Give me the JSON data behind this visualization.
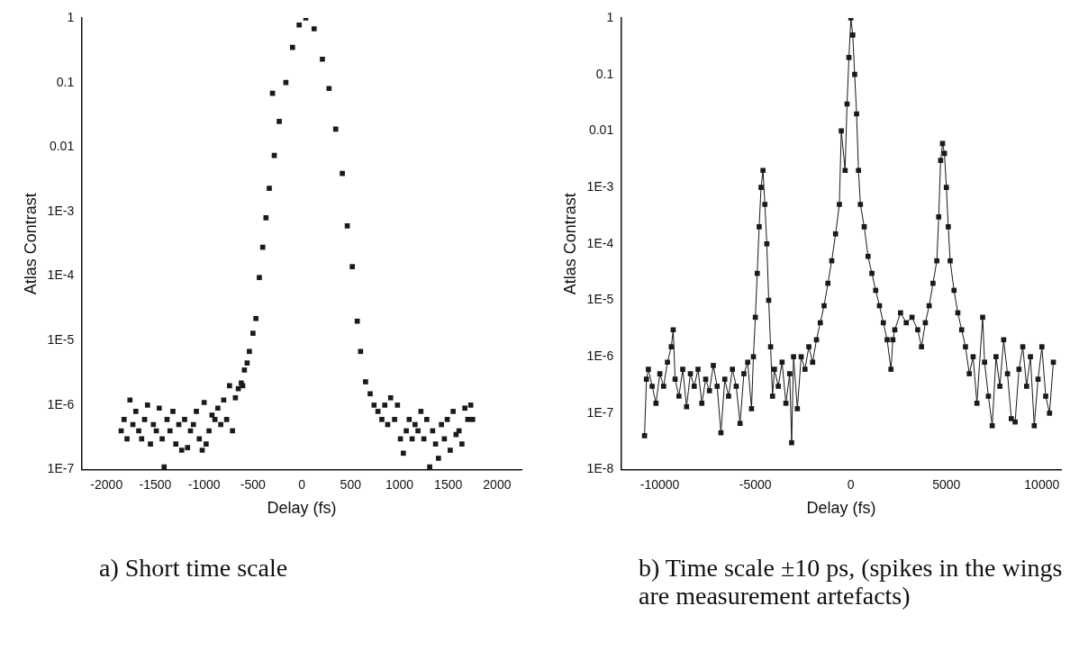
{
  "chart_data": [
    {
      "type": "scatter",
      "xlabel": "Delay (fs)",
      "ylabel": "Atlas Contrast",
      "log": "y",
      "marker": "square",
      "grid": false,
      "legend": false,
      "xlim": [
        -2250,
        2250
      ],
      "xticks": [
        -2000,
        -1500,
        -1000,
        -500,
        0,
        500,
        1000,
        1500,
        2000
      ],
      "ylim": [
        1e-07,
        1
      ],
      "yticks": [
        {
          "value": 1,
          "label": "1"
        },
        {
          "value": 0.1,
          "label": "0.1"
        },
        {
          "value": 0.01,
          "label": "0.01"
        },
        {
          "value": 0.001,
          "label": "1E-3"
        },
        {
          "value": 0.0001,
          "label": "1E-4"
        },
        {
          "value": 1e-05,
          "label": "1E-5"
        },
        {
          "value": 1e-06,
          "label": "1E-6"
        },
        {
          "value": 1e-07,
          "label": "1E-7"
        }
      ],
      "annotations": [
        "a) Short time scale"
      ],
      "series": [
        {
          "color": "#1a1a1a",
          "x": [
            -1850,
            -1820,
            -1790,
            -1760,
            -1730,
            -1700,
            -1670,
            -1640,
            -1610,
            -1580,
            -1550,
            -1520,
            -1490,
            -1460,
            -1430,
            -1410,
            -1380,
            -1350,
            -1320,
            -1290,
            -1260,
            -1230,
            -1200,
            -1170,
            -1140,
            -1110,
            -1080,
            -1050,
            -1020,
            -1000,
            -980,
            -950,
            -920,
            -890,
            -860,
            -830,
            -800,
            -770,
            -740,
            -710,
            -680,
            -650,
            -620,
            -605,
            -588,
            -560,
            -537,
            -500,
            -470,
            -435,
            -400,
            -367,
            -333,
            -300,
            -282,
            -231,
            -163,
            -95,
            -27,
            41,
            126,
            211,
            279,
            347,
            415,
            466,
            517,
            568,
            602,
            653,
            700,
            740,
            780,
            820,
            850,
            880,
            910,
            950,
            980,
            1010,
            1040,
            1070,
            1100,
            1130,
            1160,
            1190,
            1220,
            1250,
            1280,
            1310,
            1340,
            1370,
            1400,
            1430,
            1460,
            1490,
            1520,
            1550,
            1580,
            1610,
            1640,
            1670,
            1700,
            1730,
            1750
          ],
          "values": [
            4e-07,
            6e-07,
            3e-07,
            1.2e-06,
            5e-07,
            8e-07,
            4e-07,
            3e-07,
            6e-07,
            1e-06,
            2.5e-07,
            5e-07,
            4e-07,
            9e-07,
            3e-07,
            1.1e-07,
            6e-07,
            4e-07,
            8e-07,
            2.5e-07,
            5e-07,
            2e-07,
            6e-07,
            2.2e-07,
            4e-07,
            5e-07,
            8e-07,
            3e-07,
            2e-07,
            1.1e-06,
            2.5e-07,
            4e-07,
            7e-07,
            6e-07,
            9e-07,
            5e-07,
            1.2e-06,
            6e-07,
            2e-06,
            4e-07,
            1.3e-06,
            1.8e-06,
            2.2e-06,
            2e-06,
            3.5e-06,
            4.5e-06,
            6.8e-06,
            1.3e-05,
            2.2e-05,
            9.5e-05,
            0.00028,
            0.0008,
            0.0023,
            0.068,
            0.0074,
            0.025,
            0.1,
            0.35,
            0.78,
            1,
            0.68,
            0.23,
            0.081,
            0.019,
            0.0039,
            0.0006,
            0.00014,
            2e-05,
            6.8e-06,
            2.3e-06,
            1.5e-06,
            1e-06,
            8e-07,
            6e-07,
            1e-06,
            5e-07,
            1.3e-06,
            6e-07,
            1e-06,
            3e-07,
            1.8e-07,
            4e-07,
            6e-07,
            3e-07,
            5e-07,
            4e-07,
            8e-07,
            3e-07,
            6e-07,
            1.1e-07,
            4e-07,
            2.5e-07,
            1.5e-07,
            5e-07,
            3e-07,
            6e-07,
            2e-07,
            8e-07,
            3.5e-07,
            4e-07,
            2.5e-07,
            9e-07,
            6e-07,
            1e-06,
            6e-07
          ]
        }
      ]
    },
    {
      "type": "line",
      "xlabel": "Delay (fs)",
      "ylabel": "Atlas Contrast",
      "log": "y",
      "marker": "square",
      "grid": false,
      "legend": false,
      "xlim": [
        -12000,
        11000
      ],
      "xticks": [
        -10000,
        -5000,
        0,
        5000,
        10000
      ],
      "ylim": [
        1e-08,
        1
      ],
      "yticks": [
        {
          "value": 1,
          "label": "1"
        },
        {
          "value": 0.1,
          "label": "0.1"
        },
        {
          "value": 0.01,
          "label": "0.01"
        },
        {
          "value": 0.001,
          "label": "1E-3"
        },
        {
          "value": 0.0001,
          "label": "1E-4"
        },
        {
          "value": 1e-05,
          "label": "1E-5"
        },
        {
          "value": 1e-06,
          "label": "1E-6"
        },
        {
          "value": 1e-07,
          "label": "1E-7"
        },
        {
          "value": 1e-08,
          "label": "1E-8"
        }
      ],
      "annotations": [
        "b) Time scale ±10 ps, (spikes in the wings are measurement artefacts)"
      ],
      "series": [
        {
          "color": "#1a1a1a",
          "x": [
            -10800,
            -10700,
            -10600,
            -10400,
            -10200,
            -10000,
            -9800,
            -9600,
            -9400,
            -9300,
            -9200,
            -9000,
            -8800,
            -8600,
            -8400,
            -8200,
            -8000,
            -7800,
            -7600,
            -7400,
            -7200,
            -7000,
            -6800,
            -6600,
            -6400,
            -6200,
            -6000,
            -5800,
            -5600,
            -5400,
            -5200,
            -5100,
            -5000,
            -4900,
            -4800,
            -4700,
            -4600,
            -4500,
            -4400,
            -4300,
            -4200,
            -4100,
            -4000,
            -3800,
            -3600,
            -3400,
            -3200,
            -3100,
            -3000,
            -2800,
            -2600,
            -2400,
            -2200,
            -2000,
            -1800,
            -1600,
            -1400,
            -1200,
            -1000,
            -800,
            -600,
            -500,
            -300,
            -200,
            -100,
            0,
            100,
            200,
            300,
            400,
            500,
            700,
            900,
            1100,
            1300,
            1500,
            1700,
            1900,
            2100,
            2200,
            2300,
            2600,
            2900,
            3200,
            3500,
            3700,
            3900,
            4100,
            4300,
            4500,
            4600,
            4700,
            4800,
            4900,
            5000,
            5100,
            5200,
            5400,
            5600,
            5800,
            6000,
            6200,
            6400,
            6600,
            6900,
            7000,
            7200,
            7400,
            7600,
            7800,
            8000,
            8200,
            8400,
            8600,
            8800,
            9000,
            9200,
            9400,
            9600,
            9800,
            10000,
            10200,
            10400,
            10600
          ],
          "values": [
            4e-08,
            4e-07,
            6e-07,
            3e-07,
            1.5e-07,
            5e-07,
            3e-07,
            8e-07,
            1.5e-06,
            3e-06,
            4e-07,
            2e-07,
            6e-07,
            1.3e-07,
            5e-07,
            3e-07,
            6e-07,
            1.5e-07,
            4e-07,
            2.5e-07,
            7e-07,
            3e-07,
            4.5e-08,
            4e-07,
            2e-07,
            6e-07,
            3e-07,
            6.6e-08,
            5e-07,
            8e-07,
            1.2e-07,
            1e-06,
            5e-06,
            3e-05,
            0.0002,
            0.001,
            0.002,
            0.0005,
            0.0001,
            1e-05,
            1.5e-06,
            2e-07,
            6e-07,
            3e-07,
            8e-07,
            1.5e-07,
            5e-07,
            3e-08,
            1e-06,
            1.2e-07,
            1e-06,
            6e-07,
            1.5e-06,
            8e-07,
            2e-06,
            4e-06,
            8e-06,
            2e-05,
            5e-05,
            0.00015,
            0.0005,
            0.01,
            0.002,
            0.03,
            0.2,
            1,
            0.5,
            0.1,
            0.02,
            0.002,
            0.0005,
            0.0002,
            6e-05,
            3e-05,
            1.5e-05,
            8e-06,
            4e-06,
            2e-06,
            6e-07,
            2e-06,
            3e-06,
            6e-06,
            4e-06,
            5e-06,
            3e-06,
            1.5e-06,
            4e-06,
            8e-06,
            2e-05,
            5e-05,
            0.0003,
            0.003,
            0.006,
            0.004,
            0.001,
            0.0002,
            5e-05,
            1.5e-05,
            6e-06,
            3e-06,
            1.5e-06,
            5e-07,
            1e-06,
            1.5e-07,
            5e-06,
            8e-07,
            2e-07,
            6e-08,
            1e-06,
            3e-07,
            2e-06,
            5e-07,
            8e-08,
            7e-08,
            6e-07,
            1.5e-06,
            3e-07,
            1e-06,
            6e-08,
            4e-07,
            1.5e-06,
            2e-07,
            1e-07,
            8e-07
          ]
        }
      ]
    }
  ]
}
